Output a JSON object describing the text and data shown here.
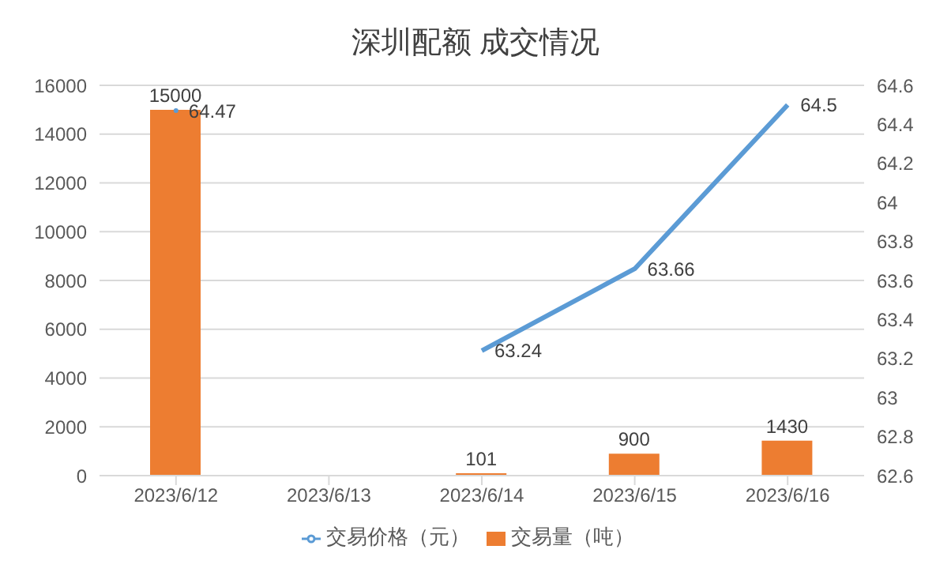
{
  "chart_data": {
    "type": "bar",
    "title": "深圳配额 成交情况",
    "categories": [
      "2023/6/12",
      "2023/6/13",
      "2023/6/14",
      "2023/6/15",
      "2023/6/16"
    ],
    "series": [
      {
        "name": "交易量（吨）",
        "color": "#ed7d31",
        "values": [
          15000,
          null,
          101,
          900,
          1430
        ]
      },
      {
        "name": "交易价格（元）",
        "type": "line",
        "axis": "y2",
        "color": "#5b9bd5",
        "values": [
          64.47,
          null,
          63.24,
          63.66,
          64.5
        ]
      }
    ],
    "ylim": [
      0,
      16000
    ],
    "yticks": [
      0,
      2000,
      4000,
      6000,
      8000,
      10000,
      12000,
      14000,
      16000
    ],
    "y2lim": [
      62.6,
      64.6
    ],
    "y2ticks": [
      62.6,
      62.8,
      63,
      63.2,
      63.4,
      63.6,
      63.8,
      64,
      64.2,
      64.4,
      64.6
    ],
    "grid": "y",
    "legend": "bottom",
    "data_labels": true,
    "marker": "none"
  }
}
